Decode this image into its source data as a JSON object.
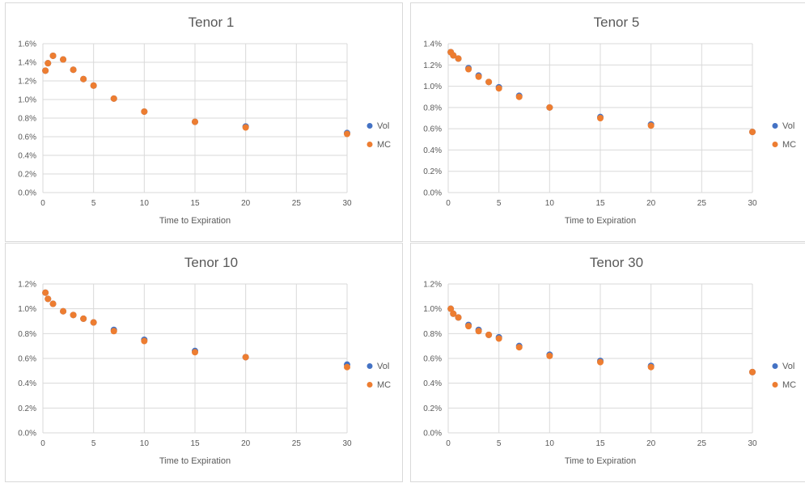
{
  "colors": {
    "vol": "#4472C4",
    "mc": "#ED7D31"
  },
  "chart_data": [
    {
      "type": "scatter",
      "title": "Tenor 1",
      "xlabel": "Time to Expiration",
      "ylabel": "",
      "xlim": [
        0,
        30
      ],
      "ylim": [
        0,
        0.016
      ],
      "x_ticks": [
        "0",
        "5",
        "10",
        "15",
        "20",
        "25",
        "30"
      ],
      "y_ticks": [
        "0.0%",
        "0.2%",
        "0.4%",
        "0.6%",
        "0.8%",
        "1.0%",
        "1.2%",
        "1.4%",
        "1.6%"
      ],
      "x": [
        0.25,
        0.5,
        1,
        2,
        3,
        4,
        5,
        7,
        10,
        15,
        20,
        30
      ],
      "series": [
        {
          "name": "Vol",
          "values": [
            0.0131,
            0.0139,
            0.0147,
            0.0143,
            0.0132,
            0.0122,
            0.0115,
            0.0101,
            0.0087,
            0.0076,
            0.0071,
            0.0064
          ]
        },
        {
          "name": "MC",
          "values": [
            0.0131,
            0.0139,
            0.0147,
            0.0143,
            0.0132,
            0.0122,
            0.0115,
            0.0101,
            0.0087,
            0.0076,
            0.007,
            0.0063
          ]
        }
      ],
      "grid": true,
      "legend": "right"
    },
    {
      "type": "scatter",
      "title": "Tenor 5",
      "xlabel": "Time to Expiration",
      "ylabel": "",
      "xlim": [
        0,
        30
      ],
      "ylim": [
        0,
        0.014
      ],
      "x_ticks": [
        "0",
        "5",
        "10",
        "15",
        "20",
        "25",
        "30"
      ],
      "y_ticks": [
        "0.0%",
        "0.2%",
        "0.4%",
        "0.6%",
        "0.8%",
        "1.0%",
        "1.2%",
        "1.4%"
      ],
      "x": [
        0.25,
        0.5,
        1,
        2,
        3,
        4,
        5,
        7,
        10,
        15,
        20,
        30
      ],
      "series": [
        {
          "name": "Vol",
          "values": [
            0.0132,
            0.0129,
            0.0126,
            0.0117,
            0.011,
            0.0104,
            0.0099,
            0.0091,
            0.008,
            0.0071,
            0.0064,
            0.0057
          ]
        },
        {
          "name": "MC",
          "values": [
            0.0132,
            0.0129,
            0.0126,
            0.0116,
            0.0109,
            0.0104,
            0.0098,
            0.009,
            0.008,
            0.007,
            0.0063,
            0.0057
          ]
        }
      ],
      "grid": true,
      "legend": "right"
    },
    {
      "type": "scatter",
      "title": "Tenor 10",
      "xlabel": "Time to Expiration",
      "ylabel": "",
      "xlim": [
        0,
        30
      ],
      "ylim": [
        0,
        0.012
      ],
      "x_ticks": [
        "0",
        "5",
        "10",
        "15",
        "20",
        "25",
        "30"
      ],
      "y_ticks": [
        "0.0%",
        "0.2%",
        "0.4%",
        "0.6%",
        "0.8%",
        "1.0%",
        "1.2%"
      ],
      "x": [
        0.25,
        0.5,
        1,
        2,
        3,
        4,
        5,
        7,
        10,
        15,
        20,
        30
      ],
      "series": [
        {
          "name": "Vol",
          "values": [
            0.0113,
            0.0108,
            0.0104,
            0.0098,
            0.0095,
            0.0092,
            0.0089,
            0.0083,
            0.0075,
            0.0066,
            0.0061,
            0.0055
          ]
        },
        {
          "name": "MC",
          "values": [
            0.0113,
            0.0108,
            0.0104,
            0.0098,
            0.0095,
            0.0092,
            0.0089,
            0.0082,
            0.0074,
            0.0065,
            0.0061,
            0.0053
          ]
        }
      ],
      "grid": true,
      "legend": "right"
    },
    {
      "type": "scatter",
      "title": "Tenor 30",
      "xlabel": "Time to Expiration",
      "ylabel": "",
      "xlim": [
        0,
        30
      ],
      "ylim": [
        0,
        0.012
      ],
      "x_ticks": [
        "0",
        "5",
        "10",
        "15",
        "20",
        "25",
        "30"
      ],
      "y_ticks": [
        "0.0%",
        "0.2%",
        "0.4%",
        "0.6%",
        "0.8%",
        "1.0%",
        "1.2%"
      ],
      "x": [
        0.25,
        0.5,
        1,
        2,
        3,
        4,
        5,
        7,
        10,
        15,
        20,
        30
      ],
      "series": [
        {
          "name": "Vol",
          "values": [
            0.01,
            0.0096,
            0.0093,
            0.0087,
            0.0083,
            0.0079,
            0.0077,
            0.007,
            0.0063,
            0.0058,
            0.0054,
            0.0049
          ]
        },
        {
          "name": "MC",
          "values": [
            0.01,
            0.0096,
            0.0093,
            0.0086,
            0.0082,
            0.0079,
            0.0076,
            0.0069,
            0.0062,
            0.0057,
            0.0053,
            0.0049
          ]
        }
      ],
      "grid": true,
      "legend": "right"
    }
  ]
}
